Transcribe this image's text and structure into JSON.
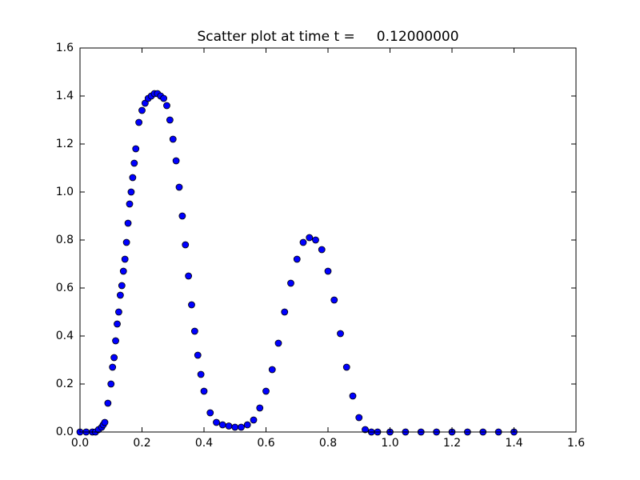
{
  "chart_data": {
    "type": "scatter",
    "title": "Scatter plot at time t =     0.12000000",
    "x": [
      0.0,
      0.02,
      0.04,
      0.05,
      0.06,
      0.07,
      0.075,
      0.08,
      0.09,
      0.1,
      0.105,
      0.11,
      0.115,
      0.12,
      0.125,
      0.13,
      0.135,
      0.14,
      0.145,
      0.15,
      0.155,
      0.16,
      0.165,
      0.17,
      0.175,
      0.18,
      0.19,
      0.2,
      0.21,
      0.22,
      0.23,
      0.24,
      0.25,
      0.26,
      0.27,
      0.28,
      0.29,
      0.3,
      0.31,
      0.32,
      0.33,
      0.34,
      0.35,
      0.36,
      0.37,
      0.38,
      0.39,
      0.4,
      0.42,
      0.44,
      0.46,
      0.48,
      0.5,
      0.52,
      0.54,
      0.56,
      0.58,
      0.6,
      0.62,
      0.64,
      0.66,
      0.68,
      0.7,
      0.72,
      0.74,
      0.76,
      0.78,
      0.8,
      0.82,
      0.84,
      0.86,
      0.88,
      0.9,
      0.92,
      0.94,
      0.96,
      1.0,
      1.05,
      1.1,
      1.15,
      1.2,
      1.25,
      1.3,
      1.35,
      1.4
    ],
    "values": [
      0,
      0,
      0,
      0,
      0.01,
      0.02,
      0.03,
      0.04,
      0.12,
      0.2,
      0.27,
      0.31,
      0.38,
      0.45,
      0.5,
      0.57,
      0.61,
      0.67,
      0.72,
      0.79,
      0.87,
      0.95,
      1.0,
      1.06,
      1.12,
      1.18,
      1.29,
      1.34,
      1.37,
      1.39,
      1.4,
      1.41,
      1.41,
      1.4,
      1.39,
      1.36,
      1.3,
      1.22,
      1.13,
      1.02,
      0.9,
      0.78,
      0.65,
      0.53,
      0.42,
      0.32,
      0.24,
      0.17,
      0.08,
      0.04,
      0.03,
      0.025,
      0.02,
      0.02,
      0.03,
      0.05,
      0.1,
      0.17,
      0.26,
      0.37,
      0.5,
      0.62,
      0.72,
      0.79,
      0.81,
      0.8,
      0.76,
      0.67,
      0.55,
      0.41,
      0.27,
      0.15,
      0.06,
      0.01,
      0,
      0,
      0,
      0,
      0,
      0,
      0,
      0,
      0,
      0,
      0
    ],
    "color": "#0000ff",
    "xlim": [
      0,
      1.6
    ],
    "ylim": [
      0,
      1.6
    ],
    "xticks": [
      {
        "value": 0,
        "label": "0.0"
      },
      0.2,
      0.4,
      0.6,
      0.8,
      {
        "value": 1,
        "label": "1.0"
      },
      1.2,
      1.4,
      1.6
    ],
    "yticks": [
      {
        "value": 0,
        "label": "0.0"
      },
      0.2,
      0.4,
      0.6,
      0.8,
      {
        "value": 1,
        "label": "1.0"
      },
      1.2,
      1.4,
      1.6
    ]
  }
}
